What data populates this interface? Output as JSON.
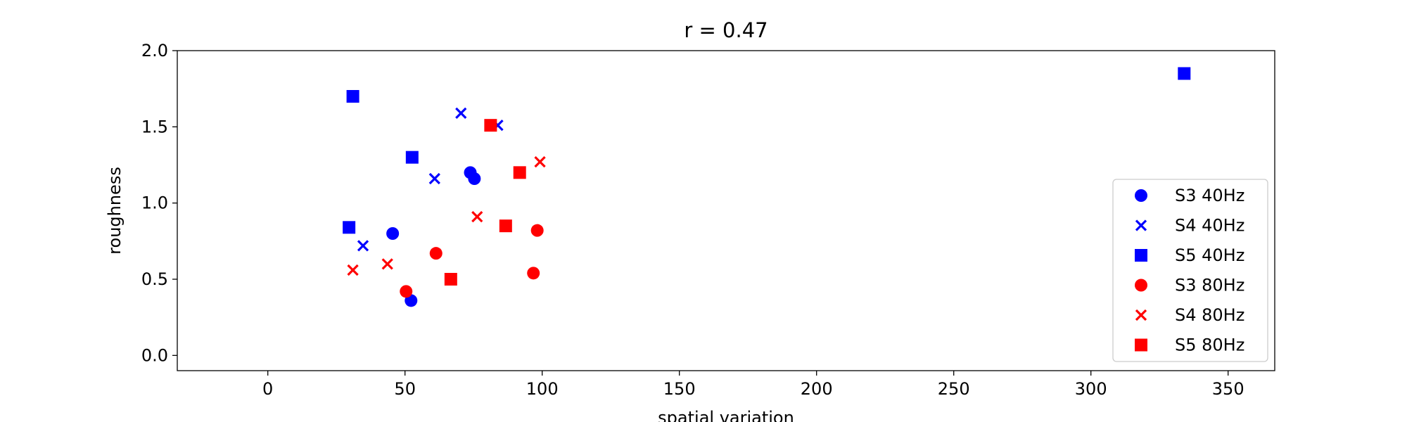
{
  "chart_data": {
    "type": "scatter",
    "title": "r = 0.47",
    "xlabel": "spatial variation",
    "ylabel": "roughness",
    "xlim": [
      -33,
      367
    ],
    "ylim": [
      -0.1,
      2.0
    ],
    "xticks": [
      0,
      50,
      100,
      150,
      200,
      250,
      300,
      350
    ],
    "yticks": [
      0.0,
      0.5,
      1.0,
      1.5,
      2.0
    ],
    "xtick_labels": [
      "0",
      "50",
      "100",
      "150",
      "200",
      "250",
      "300",
      "350"
    ],
    "ytick_labels": [
      "0.0",
      "0.5",
      "1.0",
      "1.5",
      "2.0"
    ],
    "grid": false,
    "legend_position": "lower-right",
    "series": [
      {
        "name": "S3 40Hz",
        "marker": "circle",
        "color": "#0000ff",
        "points": [
          [
            45.5,
            0.8
          ],
          [
            52.2,
            0.36
          ],
          [
            73.8,
            1.2
          ],
          [
            75.3,
            1.16
          ]
        ]
      },
      {
        "name": "S4 40Hz",
        "marker": "x",
        "color": "#0000ff",
        "points": [
          [
            34.7,
            0.72
          ],
          [
            60.8,
            1.16
          ],
          [
            70.4,
            1.59
          ],
          [
            83.8,
            1.51
          ]
        ]
      },
      {
        "name": "S5 40Hz",
        "marker": "square",
        "color": "#0000ff",
        "points": [
          [
            29.6,
            0.84
          ],
          [
            31.0,
            1.7
          ],
          [
            52.6,
            1.3
          ],
          [
            334.0,
            1.85
          ]
        ]
      },
      {
        "name": "S3 80Hz",
        "marker": "circle",
        "color": "#ff0000",
        "points": [
          [
            50.4,
            0.42
          ],
          [
            61.3,
            0.67
          ],
          [
            96.8,
            0.54
          ],
          [
            98.2,
            0.82
          ]
        ]
      },
      {
        "name": "S4 80Hz",
        "marker": "x",
        "color": "#ff0000",
        "points": [
          [
            31.0,
            0.56
          ],
          [
            43.6,
            0.6
          ],
          [
            76.3,
            0.91
          ],
          [
            99.2,
            1.27
          ]
        ]
      },
      {
        "name": "S5 80Hz",
        "marker": "square",
        "color": "#ff0000",
        "points": [
          [
            66.7,
            0.5
          ],
          [
            81.2,
            1.51
          ],
          [
            86.7,
            0.85
          ],
          [
            91.8,
            1.2
          ]
        ]
      }
    ]
  }
}
